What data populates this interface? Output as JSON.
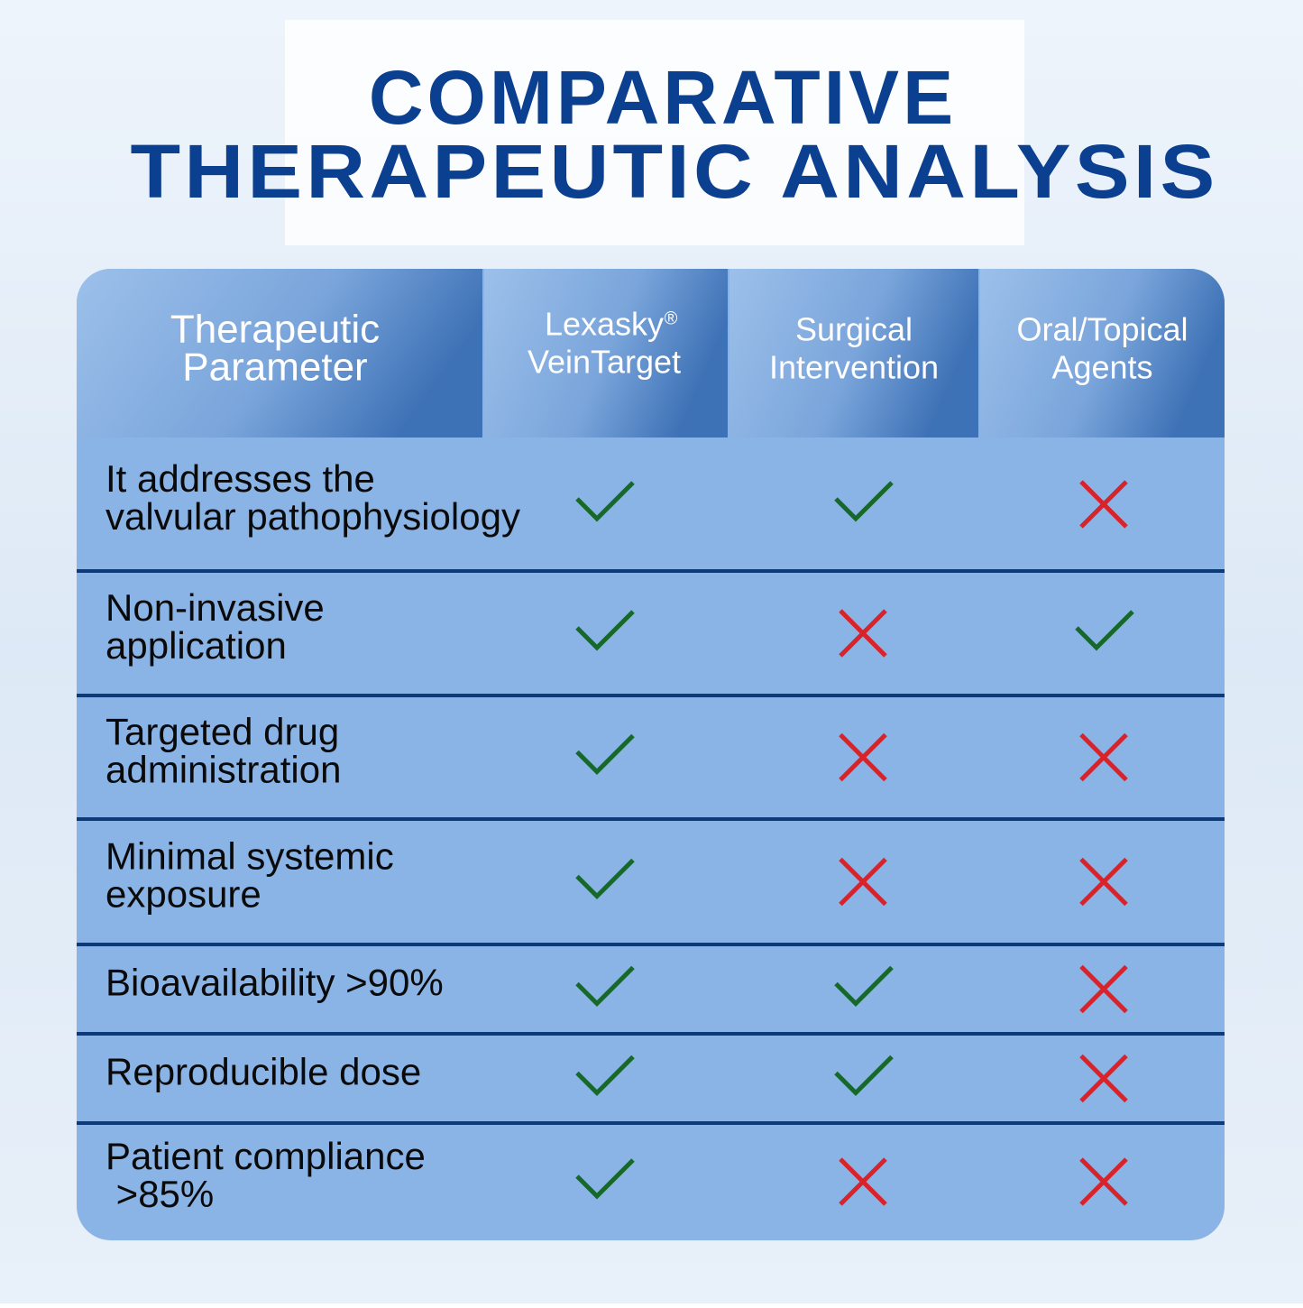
{
  "title": [
    "COMPARATIVE",
    "THERAPEUTIC ANALYSIS"
  ],
  "table": {
    "headers": [
      {
        "lines": [
          "Therapeutic",
          "Parameter"
        ]
      },
      {
        "lines": [
          "Lexasky",
          "VeinTarget"
        ],
        "mark": "®"
      },
      {
        "lines": [
          "Surgical",
          "Intervention"
        ]
      },
      {
        "lines": [
          "Oral/Topical",
          "Agents"
        ]
      }
    ],
    "rows": [
      {
        "parameter": [
          "It addresses the",
          "valvular pathophysiology"
        ],
        "cells": [
          true,
          true,
          false
        ]
      },
      {
        "parameter": [
          "Non-invasive",
          "application"
        ],
        "cells": [
          true,
          false,
          true
        ]
      },
      {
        "parameter": [
          "Targeted drug",
          "administration"
        ],
        "cells": [
          true,
          false,
          false
        ]
      },
      {
        "parameter": [
          "Minimal systemic",
          "exposure"
        ],
        "cells": [
          true,
          false,
          false
        ]
      },
      {
        "parameter": [
          "Bioavailability >90%"
        ],
        "cells": [
          true,
          true,
          false
        ]
      },
      {
        "parameter": [
          "Reproducible dose"
        ],
        "cells": [
          true,
          true,
          false
        ]
      },
      {
        "parameter": [
          "Patient compliance",
          " >85%"
        ],
        "cells": [
          true,
          false,
          false
        ]
      }
    ]
  }
}
